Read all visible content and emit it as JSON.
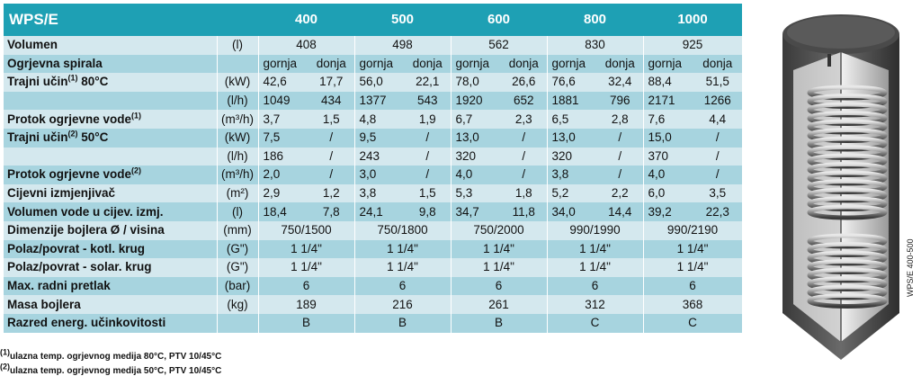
{
  "table": {
    "title": "WPS/E",
    "models": [
      "400",
      "500",
      "600",
      "800",
      "1000"
    ],
    "rows": [
      {
        "label": "Volumen",
        "unit": "(l)",
        "span": [
          "408",
          "498",
          "562",
          "830",
          "925"
        ]
      },
      {
        "label": "Ogrjevna spirala",
        "unit": "",
        "pairs": [
          [
            "gornja",
            "donja"
          ],
          [
            "gornja",
            "donja"
          ],
          [
            "gornja",
            "donja"
          ],
          [
            "gornja",
            "donja"
          ],
          [
            "gornja",
            "donja"
          ]
        ]
      },
      {
        "label": "Trajni učin",
        "sup": "(1)",
        "label_suffix": " 80°C",
        "unit": "(kW)",
        "pairs": [
          [
            "42,6",
            "17,7"
          ],
          [
            "56,0",
            "22,1"
          ],
          [
            "78,0",
            "26,6"
          ],
          [
            "76,6",
            "32,4"
          ],
          [
            "88,4",
            "51,5"
          ]
        ]
      },
      {
        "label": "",
        "unit": "(l/h)",
        "pairs": [
          [
            "1049",
            "434"
          ],
          [
            "1377",
            "543"
          ],
          [
            "1920",
            "652"
          ],
          [
            "1881",
            "796"
          ],
          [
            "2171",
            "1266"
          ]
        ]
      },
      {
        "label": "Protok ogrjevne vode",
        "sup": "(1)",
        "unit": "(m³/h)",
        "pairs": [
          [
            "3,7",
            "1,5"
          ],
          [
            "4,8",
            "1,9"
          ],
          [
            "6,7",
            "2,3"
          ],
          [
            "6,5",
            "2,8"
          ],
          [
            "7,6",
            "4,4"
          ]
        ]
      },
      {
        "label": "Trajni učin",
        "sup": "(2)",
        "label_suffix": " 50°C",
        "unit": "(kW)",
        "pairs": [
          [
            "7,5",
            "/"
          ],
          [
            "9,5",
            "/"
          ],
          [
            "13,0",
            "/"
          ],
          [
            "13,0",
            "/"
          ],
          [
            "15,0",
            "/"
          ]
        ]
      },
      {
        "label": "",
        "unit": "(l/h)",
        "pairs": [
          [
            "186",
            "/"
          ],
          [
            "243",
            "/"
          ],
          [
            "320",
            "/"
          ],
          [
            "320",
            "/"
          ],
          [
            "370",
            "/"
          ]
        ]
      },
      {
        "label": "Protok ogrjevne vode",
        "sup": "(2)",
        "unit": "(m³/h)",
        "pairs": [
          [
            "2,0",
            "/"
          ],
          [
            "3,0",
            "/"
          ],
          [
            "4,0",
            "/"
          ],
          [
            "3,8",
            "/"
          ],
          [
            "4,0",
            "/"
          ]
        ]
      },
      {
        "label": "Cijevni izmjenjivač",
        "unit": "(m²)",
        "pairs": [
          [
            "2,9",
            "1,2"
          ],
          [
            "3,8",
            "1,5"
          ],
          [
            "5,3",
            "1,8"
          ],
          [
            "5,2",
            "2,2"
          ],
          [
            "6,0",
            "3,5"
          ]
        ]
      },
      {
        "label": "Volumen vode u cijev. izmj.",
        "unit": "(l)",
        "pairs": [
          [
            "18,4",
            "7,8"
          ],
          [
            "24,1",
            "9,8"
          ],
          [
            "34,7",
            "11,8"
          ],
          [
            "34,0",
            "14,4"
          ],
          [
            "39,2",
            "22,3"
          ]
        ]
      },
      {
        "label": "Dimenzije bojlera  Ø / visina",
        "unit": "(mm)",
        "span": [
          "750/1500",
          "750/1800",
          "750/2000",
          "990/1990",
          "990/2190"
        ]
      },
      {
        "label": "Polaz/povrat - kotl. krug",
        "unit": "(G\")",
        "span": [
          "1 1/4\"",
          "1 1/4\"",
          "1 1/4\"",
          "1 1/4\"",
          "1 1/4\""
        ]
      },
      {
        "label": "Polaz/povrat - solar. krug",
        "unit": "(G\")",
        "span": [
          "1 1/4\"",
          "1 1/4\"",
          "1 1/4\"",
          "1 1/4\"",
          "1 1/4\""
        ]
      },
      {
        "label": "Max. radni pretlak",
        "unit": "(bar)",
        "span": [
          "6",
          "6",
          "6",
          "6",
          "6"
        ]
      },
      {
        "label": "Masa bojlera",
        "unit": "(kg)",
        "span": [
          "189",
          "216",
          "261",
          "312",
          "368"
        ]
      },
      {
        "label": "Razred energ. učinkovitosti",
        "unit": "",
        "span": [
          "B",
          "B",
          "B",
          "C",
          "C"
        ]
      }
    ]
  },
  "footnotes": [
    {
      "mark": "(1)",
      "text": "ulazna temp. ogrjevnog medija 80°C, PTV 10/45°C"
    },
    {
      "mark": "(2)",
      "text": "ulazna temp. ogrjevnog medija 50°C, PTV 10/45°C"
    }
  ],
  "side_label": "WPS/E 400-500",
  "colors": {
    "header": "#1ea0b4",
    "row_light": "#d4e8ee",
    "row_dark": "#a7d4df"
  }
}
